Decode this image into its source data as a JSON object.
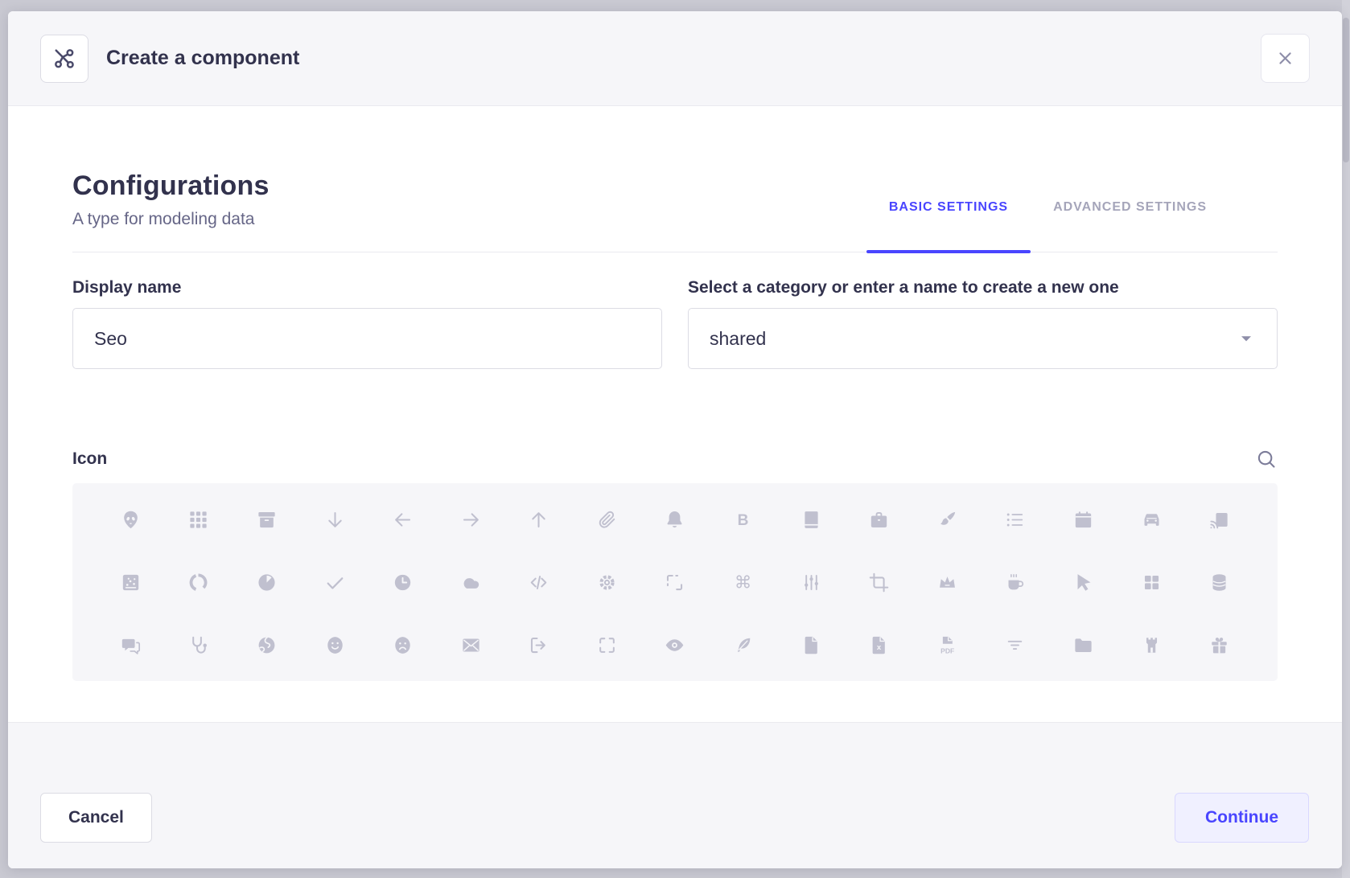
{
  "modal": {
    "title": "Create a component",
    "header_icon": "component-icon",
    "close_icon": "close-icon"
  },
  "section": {
    "title": "Configurations",
    "subtitle": "A type for modeling data"
  },
  "tabs": [
    {
      "label": "BASIC SETTINGS",
      "active": true
    },
    {
      "label": "ADVANCED SETTINGS",
      "active": false
    }
  ],
  "form": {
    "display_name": {
      "label": "Display name",
      "value": "Seo"
    },
    "category": {
      "label": "Select a category or enter a name to create a new one",
      "value": "shared"
    },
    "icon_picker": {
      "label": "Icon",
      "search_icon": "search-icon"
    }
  },
  "icon_grid": {
    "rows": [
      [
        "alien",
        "apps",
        "archive",
        "arrow-down",
        "arrow-left",
        "arrow-right",
        "arrow-up",
        "attachment",
        "bell",
        "bold",
        "book",
        "briefcase",
        "brush",
        "bullet-list",
        "calendar",
        "car",
        "cast"
      ],
      [
        "chart-bubble",
        "chart-circle",
        "chart-pie",
        "check",
        "clock",
        "cloud",
        "code",
        "cog",
        "connector",
        "command",
        "sliders",
        "crop",
        "crown",
        "cup",
        "cursor",
        "dashboard",
        "database"
      ],
      [
        "discuss",
        "doctor",
        "earth",
        "emotion-happy",
        "emotion-unhappy",
        "envelop",
        "exit",
        "expand",
        "eye",
        "feather",
        "file",
        "file-error",
        "file-pdf",
        "filter",
        "folder",
        "gate",
        "gift"
      ]
    ]
  },
  "footer": {
    "cancel_label": "Cancel",
    "continue_label": "Continue"
  },
  "colors": {
    "primary": "#4945ff",
    "primary_bg": "#f0f0ff",
    "primary_border": "#d9d8ff",
    "text": "#32324d",
    "muted": "#666687",
    "inactive_tab": "#a5a5ba",
    "icon_gray": "#c0c0cf",
    "surface": "#f6f6f9",
    "hairline": "#eaeaef",
    "input_border": "#dcdce4",
    "backdrop": "#c9c9d2"
  }
}
